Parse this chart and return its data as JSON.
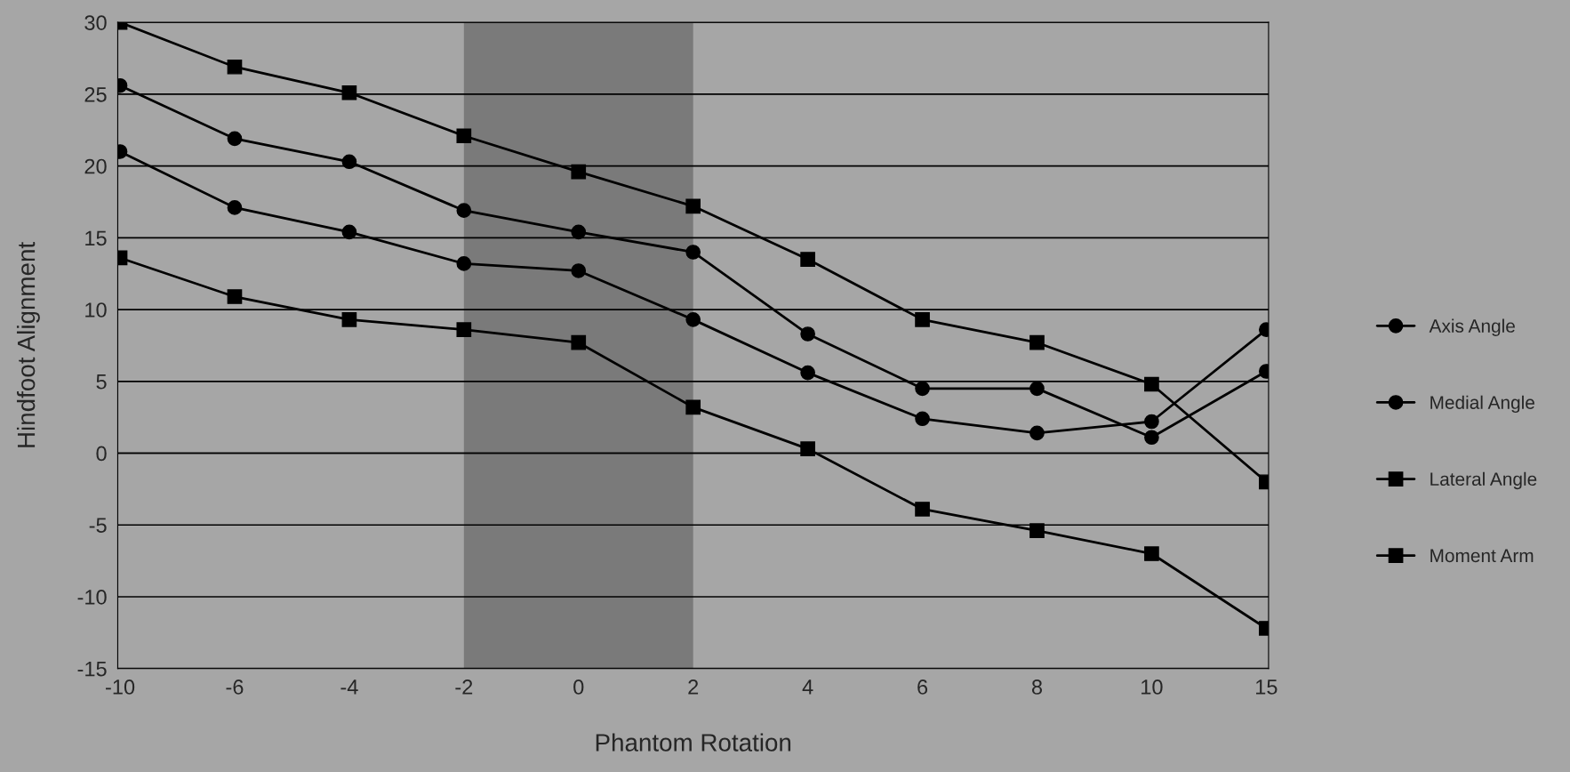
{
  "chart_data": {
    "type": "line",
    "xlabel": "Phantom Rotation",
    "ylabel": "Hindfoot Alignment",
    "categories": [
      "-10",
      "-6",
      "-4",
      "-2",
      "0",
      "2",
      "4",
      "6",
      "8",
      "10",
      "15"
    ],
    "series": [
      {
        "name": "Axis Angle",
        "color": "#000000",
        "marker": "circle",
        "values": [
          25.6,
          21.9,
          20.3,
          16.9,
          15.4,
          14.0,
          8.3,
          4.5,
          4.5,
          1.1,
          5.7
        ]
      },
      {
        "name": "Medial Angle",
        "color": "#000000",
        "marker": "circle",
        "values": [
          21.0,
          17.1,
          15.4,
          13.2,
          12.7,
          9.3,
          5.6,
          2.4,
          1.4,
          2.2,
          8.6
        ]
      },
      {
        "name": "Lateral Angle",
        "color": "#000000",
        "marker": "square",
        "values": [
          30.0,
          26.9,
          25.1,
          22.1,
          19.6,
          17.2,
          13.5,
          9.3,
          7.7,
          4.8,
          -2.0
        ]
      },
      {
        "name": "Moment Arm",
        "color": "#000000",
        "marker": "square",
        "values": [
          13.6,
          10.9,
          9.3,
          8.6,
          7.7,
          3.2,
          0.3,
          -3.9,
          -5.4,
          -7.0,
          -12.2
        ]
      }
    ],
    "bands": [
      {
        "axis": "x",
        "from": "-2",
        "to": "2",
        "color": "#7a7a7a"
      }
    ],
    "ylim": [
      -15,
      30
    ],
    "yticks": [
      -15,
      -10,
      -5,
      0,
      5,
      10,
      15,
      20,
      25,
      30
    ],
    "grid": "y",
    "legend": "right",
    "line_style": "solid"
  }
}
